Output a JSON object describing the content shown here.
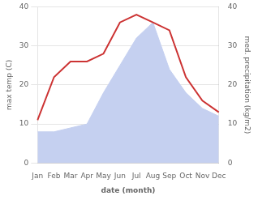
{
  "chart_data": {
    "type": "line",
    "categories": [
      "Jan",
      "Feb",
      "Mar",
      "Apr",
      "May",
      "Jun",
      "Jul",
      "Aug",
      "Sep",
      "Oct",
      "Nov",
      "Dec"
    ],
    "series": [
      {
        "type": "area",
        "color": "#c5d0f0",
        "axis": "y2",
        "values": [
          8,
          8,
          9,
          10,
          18,
          25,
          32,
          36,
          24,
          18,
          14,
          12
        ]
      },
      {
        "type": "line",
        "color": "#cc3333",
        "values": [
          11,
          22,
          26,
          26,
          28,
          36,
          38,
          36,
          34,
          22,
          16,
          13
        ]
      }
    ],
    "xlabel": "date (month)",
    "ylabel": "max temp (C)",
    "y2label": "med. precipitation (kg/m2)",
    "ylim": [
      0,
      40
    ],
    "yticks": [
      0,
      10,
      20,
      30,
      40
    ],
    "y2lim": [
      0,
      40
    ],
    "y2ticks": [
      0,
      10,
      20,
      30,
      40
    ],
    "grid": true
  }
}
